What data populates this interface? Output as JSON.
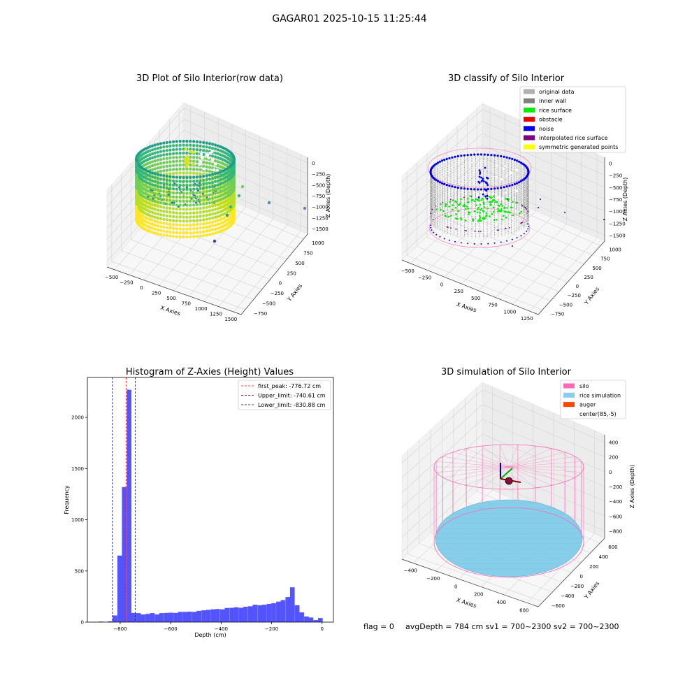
{
  "figure": {
    "suptitle": "GAGAR01 2025-10-15 11:25:44",
    "footer": {
      "flag": "flag = 0",
      "stats": "avgDepth = 784 cm  sv1 = 700~2300  sv2 = 700~2300"
    }
  },
  "chart_data": [
    {
      "type": "scatter",
      "projection": "3d",
      "title": "3D Plot of Silo Interior(row data)",
      "xlabel": "X Axies",
      "ylabel": "Y Axies",
      "zlabel": "Z Axies (Depth)",
      "x_ticks": [
        "−500",
        "−250",
        "0",
        "250",
        "500",
        "750",
        "1000",
        "1250",
        "1500"
      ],
      "y_ticks": [
        "−750",
        "−500",
        "−250",
        "0",
        "250",
        "500",
        "750",
        "1000"
      ],
      "z_ticks": [
        "0",
        "−250",
        "−500",
        "−750",
        "−1000",
        "−1250",
        "−1500"
      ],
      "colormap": [
        "#fde725",
        "#b5de2b",
        "#6ece58",
        "#35b779",
        "#1f9e89",
        "#26828e",
        "#31688e",
        "#3e4989"
      ],
      "grid": true
    },
    {
      "type": "scatter",
      "projection": "3d",
      "title": "3D classify of Silo Interior",
      "xlabel": "X Axies",
      "ylabel": "Y Axies",
      "zlabel": "Z Axies (Depth)",
      "x_ticks": [
        "−500",
        "−250",
        "0",
        "250",
        "500",
        "750",
        "1000",
        "1250"
      ],
      "y_ticks": [
        "−750",
        "−500",
        "−250",
        "0",
        "250",
        "500",
        "750",
        "1000"
      ],
      "z_ticks": [
        "0",
        "−250",
        "−500",
        "−750",
        "−1000",
        "−1250",
        "−1500"
      ],
      "legend": {
        "placement": "top-right",
        "entries": [
          {
            "label": "original data",
            "color": "#b0b0b0"
          },
          {
            "label": "inner wall",
            "color": "#808080"
          },
          {
            "label": "rice surface",
            "color": "#00ee00"
          },
          {
            "label": "obstacle",
            "color": "#ee0000"
          },
          {
            "label": "noise",
            "color": "#0000ee"
          },
          {
            "label": "interpolated rice surface",
            "color": "#800080"
          },
          {
            "label": "symmetric generated points",
            "color": "#ffff00"
          }
        ]
      },
      "grid": true
    },
    {
      "type": "bar",
      "subtype": "histogram",
      "title": "Histogram of Z-Axies (Height) Values",
      "xlabel": "Depth (cm)",
      "ylabel": "Frequency",
      "xlim": [
        -930,
        45
      ],
      "ylim": [
        0,
        2390
      ],
      "x_ticks": [
        -800,
        -600,
        -400,
        -200,
        0
      ],
      "y_ticks": [
        0,
        500,
        1000,
        1500,
        2000
      ],
      "bar_color": "#4b4bff",
      "bin_width": 18.5,
      "bins": [
        {
          "x": -885,
          "count": 5
        },
        {
          "x": -867,
          "count": 2
        },
        {
          "x": -848,
          "count": 8
        },
        {
          "x": -830,
          "count": 65
        },
        {
          "x": -811,
          "count": 650
        },
        {
          "x": -793,
          "count": 1320
        },
        {
          "x": -774,
          "count": 2270
        },
        {
          "x": -756,
          "count": 90
        },
        {
          "x": -737,
          "count": 88
        },
        {
          "x": -719,
          "count": 75
        },
        {
          "x": -700,
          "count": 80
        },
        {
          "x": -682,
          "count": 88
        },
        {
          "x": -663,
          "count": 75
        },
        {
          "x": -645,
          "count": 88
        },
        {
          "x": -626,
          "count": 90
        },
        {
          "x": -608,
          "count": 92
        },
        {
          "x": -589,
          "count": 90
        },
        {
          "x": -571,
          "count": 100
        },
        {
          "x": -552,
          "count": 100
        },
        {
          "x": -534,
          "count": 102
        },
        {
          "x": -515,
          "count": 100
        },
        {
          "x": -497,
          "count": 110
        },
        {
          "x": -478,
          "count": 115
        },
        {
          "x": -460,
          "count": 120
        },
        {
          "x": -441,
          "count": 125
        },
        {
          "x": -423,
          "count": 128
        },
        {
          "x": -404,
          "count": 125
        },
        {
          "x": -386,
          "count": 138
        },
        {
          "x": -367,
          "count": 140
        },
        {
          "x": -349,
          "count": 145
        },
        {
          "x": -330,
          "count": 140
        },
        {
          "x": -312,
          "count": 150
        },
        {
          "x": -293,
          "count": 155
        },
        {
          "x": -275,
          "count": 170
        },
        {
          "x": -256,
          "count": 165
        },
        {
          "x": -238,
          "count": 170
        },
        {
          "x": -219,
          "count": 178
        },
        {
          "x": -201,
          "count": 185
        },
        {
          "x": -182,
          "count": 200
        },
        {
          "x": -164,
          "count": 215
        },
        {
          "x": -145,
          "count": 245
        },
        {
          "x": -127,
          "count": 340
        },
        {
          "x": -108,
          "count": 165
        },
        {
          "x": -90,
          "count": 95
        },
        {
          "x": -71,
          "count": 55
        },
        {
          "x": -53,
          "count": 45
        },
        {
          "x": -34,
          "count": 20
        },
        {
          "x": -16,
          "count": 40
        }
      ],
      "vlines": [
        {
          "label": "first_peak: -776.72 cm",
          "x": -776.72,
          "color": "#ff0000"
        },
        {
          "label": "Upper_limit: -740.61 cm",
          "x": -740.61,
          "color": "#0000aa"
        },
        {
          "label": "Lower_limit: -830.88 cm",
          "x": -830.88,
          "color": "#0000aa"
        }
      ],
      "legend": {
        "placement": "top-right"
      },
      "grid": false
    },
    {
      "type": "scatter",
      "projection": "3d",
      "title": "3D simulation of Silo Interior",
      "xlabel": "X Axies",
      "ylabel": "Y Axies",
      "zlabel": "Z Axies (Depth)",
      "x_ticks": [
        "−400",
        "−200",
        "0",
        "200",
        "400",
        "600"
      ],
      "y_ticks": [
        "−600",
        "−400",
        "−200",
        "0",
        "200",
        "400",
        "600"
      ],
      "z_ticks": [
        "400",
        "200",
        "0",
        "−200",
        "−400",
        "−600",
        "−800"
      ],
      "legend": {
        "placement": "top-right",
        "entries": [
          {
            "label": "silo",
            "color": "#ff69b4"
          },
          {
            "label": "rice simulation",
            "color": "#87ceeb"
          },
          {
            "label": "auger",
            "color": "#ff4500"
          },
          {
            "label": "center(85,-5)",
            "color": "#ffffff"
          }
        ]
      },
      "grid": true
    }
  ]
}
